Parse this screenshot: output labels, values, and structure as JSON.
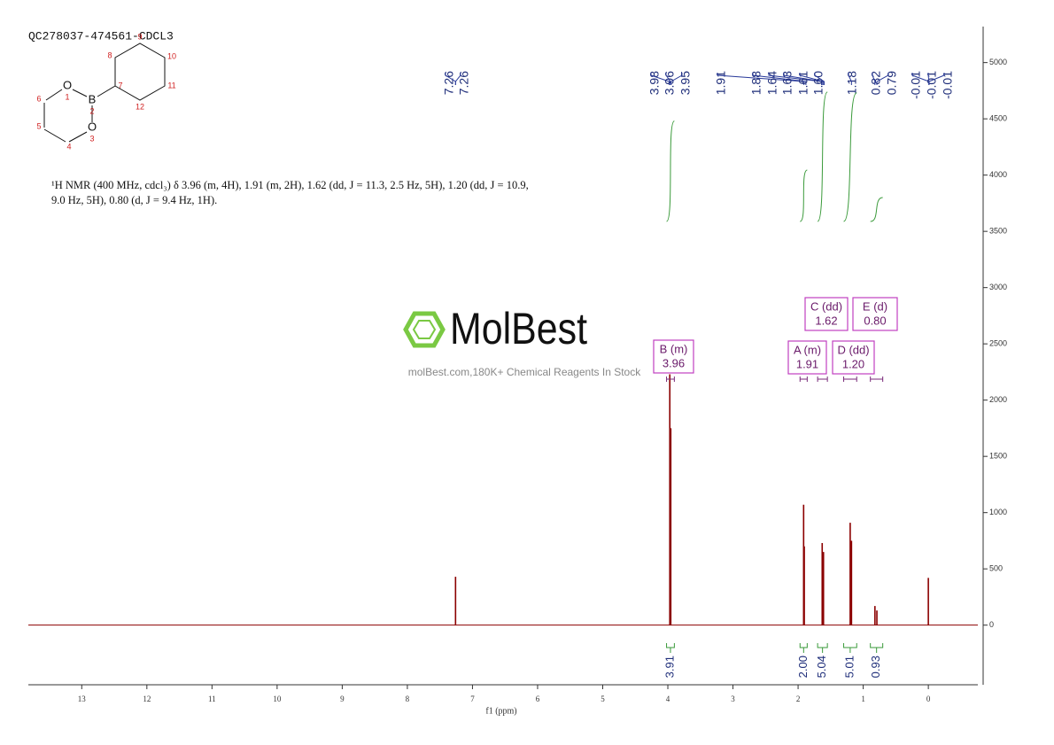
{
  "title": "QC278037-474561-CDCL3",
  "structure": {
    "atoms": [
      "O",
      "B",
      "O"
    ],
    "numbers": [
      "1",
      "2",
      "3",
      "4",
      "5",
      "6",
      "7",
      "8",
      "9",
      "10",
      "11",
      "12"
    ]
  },
  "description": "¹H NMR (400 MHz, cdcl₃) δ 3.96 (m, 4H), 1.91 (m, 2H), 1.62 (dd, J = 11.3, 2.5 Hz, 5H), 1.20 (dd, J = 10.9, 9.0 Hz, 5H), 0.80 (d, J = 9.4 Hz, 1H).",
  "watermark": {
    "brand": "MolBest",
    "tagline": "molBest.com,180K+ Chemical Reagents In Stock"
  },
  "chart_data": {
    "type": "nmr-spectrum",
    "color": "#8b0000",
    "xlabel": "f1 (ppm)",
    "xlim": [
      13.82,
      -0.76
    ],
    "xticks": [
      13,
      12,
      11,
      10,
      9,
      8,
      7,
      6,
      5,
      4,
      3,
      2,
      1,
      0
    ],
    "ylim": [
      -530,
      5320
    ],
    "yticks": [
      0,
      500,
      1000,
      1500,
      2000,
      2500,
      3000,
      3500,
      4000,
      4500,
      5000
    ],
    "peaks": {
      "x": [
        7.26,
        3.97,
        3.955,
        1.915,
        1.905,
        1.63,
        1.61,
        1.2,
        1.18,
        0.82,
        0.79,
        0.0
      ],
      "values": [
        430,
        2230,
        1750,
        1070,
        700,
        730,
        650,
        910,
        750,
        170,
        130,
        420
      ]
    },
    "peak_picks": {
      "values": [
        7.26,
        7.26,
        3.98,
        3.96,
        3.95,
        1.91,
        1.88,
        1.64,
        1.63,
        1.61,
        1.6,
        1.18,
        0.82,
        0.79,
        -0.01,
        -0.01,
        -0.01
      ],
      "value_labels": [
        "7.26",
        "7.26",
        "3.98",
        "3.96",
        "3.95",
        "1.91",
        "1.88",
        "1.64",
        "1.63",
        "1.61",
        "1.60",
        "1.18",
        "0.82",
        "0.79",
        "-0.01",
        "-0.01",
        "-0.01"
      ]
    },
    "integrals": {
      "values": [
        3.91,
        2.0,
        5.04,
        5.01,
        0.93
      ],
      "value_labels": [
        "3.91",
        "2.00",
        "5.04",
        "5.01",
        "0.93"
      ],
      "ranges": [
        [
          4.02,
          3.9
        ],
        [
          1.97,
          1.86
        ],
        [
          1.7,
          1.55
        ],
        [
          1.3,
          1.1
        ],
        [
          0.89,
          0.7
        ]
      ]
    },
    "multiplets": [
      {
        "name": "B (m)",
        "shift": "3.96"
      },
      {
        "name": "A (m)",
        "shift": "1.91"
      },
      {
        "name": "C (dd)",
        "shift": "1.62"
      },
      {
        "name": "D (dd)",
        "shift": "1.20"
      },
      {
        "name": "E (d)",
        "shift": "0.80"
      }
    ]
  }
}
